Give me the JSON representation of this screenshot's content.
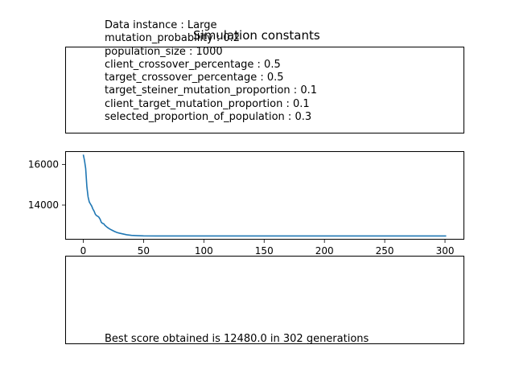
{
  "figure": {
    "title": "Simulation constants",
    "parameters": [
      "Data instance : Large",
      "mutation_probability : 0.2",
      "population_size : 1000",
      "client_crossover_percentage : 0.5",
      "target_crossover_percentage : 0.5",
      "target_steiner_mutation_proportion : 0.1",
      "client_target_mutation_proportion : 0.1",
      "selected_proportion_of_population : 0.3"
    ],
    "best_score_text": "Best score obtained is 12480.0 in 302 generations"
  },
  "chart_data": {
    "type": "line",
    "title": "",
    "xlabel": "",
    "ylabel": "",
    "xlim": [
      -15,
      316
    ],
    "ylim": [
      12300,
      16650
    ],
    "xticks": [
      0,
      50,
      100,
      150,
      200,
      250,
      300
    ],
    "yticks": [
      14000,
      16000
    ],
    "xtick_labels": [
      "0",
      "50",
      "100",
      "150",
      "200",
      "250",
      "300"
    ],
    "ytick_labels": [
      "14000",
      "16000"
    ],
    "grid": false,
    "color": "#1f77b4",
    "series": [
      {
        "x": [
          0,
          1,
          2,
          3,
          4,
          5,
          6,
          7,
          8,
          9,
          10,
          11,
          12,
          13,
          14,
          15,
          16,
          17,
          18,
          19,
          20,
          22,
          24,
          26,
          28,
          30,
          33,
          36,
          40,
          45,
          50,
          60,
          80,
          100,
          150,
          200,
          250,
          301
        ],
        "y": [
          16480,
          16200,
          15800,
          14900,
          14400,
          14150,
          14050,
          13950,
          13800,
          13700,
          13550,
          13480,
          13450,
          13400,
          13300,
          13150,
          13100,
          13080,
          13000,
          12950,
          12900,
          12820,
          12760,
          12700,
          12650,
          12620,
          12580,
          12540,
          12510,
          12495,
          12485,
          12480,
          12480,
          12480,
          12480,
          12480,
          12480,
          12480
        ]
      }
    ]
  }
}
